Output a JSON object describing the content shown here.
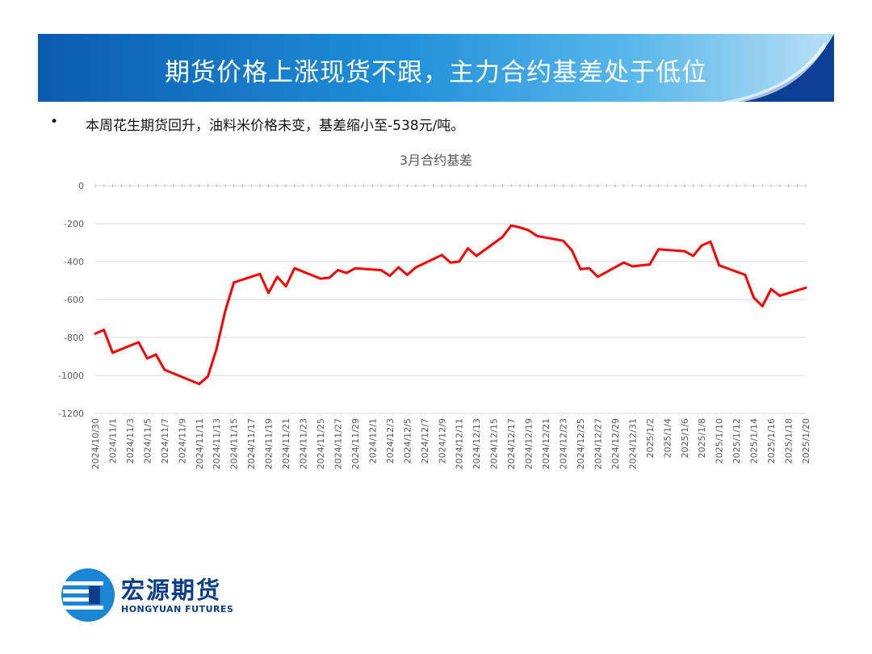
{
  "header": {
    "title": "期货价格上涨现货不跟，主力合约基差处于低位"
  },
  "bullet": {
    "marker": "•",
    "text": "本周花生期货回升，油料米价格未变，基差缩小至-538元/吨。"
  },
  "logo": {
    "name_cn": "宏源期货",
    "name_en": "HONGYUAN FUTURES"
  },
  "colors": {
    "series": "#ff0000",
    "banner": "#1a7fd0",
    "logo": "#0b3e8a"
  },
  "chart_data": {
    "type": "line",
    "title": "3月合约基差",
    "xlabel": "",
    "ylabel": "",
    "ylim": [
      -1200,
      0
    ],
    "yticks": [
      0,
      -200,
      -400,
      -600,
      -800,
      -1000,
      -1200
    ],
    "grid": true,
    "legend": "none",
    "x_tick_labels": [
      "2024/10/30",
      "2024/11/1",
      "2024/11/3",
      "2024/11/5",
      "2024/11/7",
      "2024/11/9",
      "2024/11/11",
      "2024/11/13",
      "2024/11/15",
      "2024/11/17",
      "2024/11/19",
      "2024/11/21",
      "2024/11/23",
      "2024/11/25",
      "2024/11/27",
      "2024/11/29",
      "2024/12/1",
      "2024/12/3",
      "2024/12/5",
      "2024/12/7",
      "2024/12/9",
      "2024/12/11",
      "2024/12/13",
      "2024/12/15",
      "2024/12/17",
      "2024/12/19",
      "2024/12/21",
      "2024/12/23",
      "2024/12/25",
      "2024/12/27",
      "2024/12/29",
      "2024/12/31",
      "2025/1/2",
      "2025/1/4",
      "2025/1/6",
      "2025/1/8",
      "2025/1/10",
      "2025/1/12",
      "2025/1/14",
      "2025/1/16",
      "2025/1/18",
      "2025/1/20"
    ],
    "series": [
      {
        "x": [
          "2024/10/30",
          "2024/10/31",
          "2024/11/1",
          "2024/11/4",
          "2024/11/5",
          "2024/11/6",
          "2024/11/7",
          "2024/11/11",
          "2024/11/12",
          "2024/11/13",
          "2024/11/14",
          "2024/11/15",
          "2024/11/18",
          "2024/11/19",
          "2024/11/20",
          "2024/11/21",
          "2024/11/22",
          "2024/11/25",
          "2024/11/26",
          "2024/11/27",
          "2024/11/28",
          "2024/11/29",
          "2024/12/2",
          "2024/12/3",
          "2024/12/4",
          "2024/12/5",
          "2024/12/6",
          "2024/12/9",
          "2024/12/10",
          "2024/12/11",
          "2024/12/12",
          "2024/12/13",
          "2024/12/16",
          "2024/12/17",
          "2024/12/18",
          "2024/12/19",
          "2024/12/20",
          "2024/12/23",
          "2024/12/24",
          "2024/12/25",
          "2024/12/26",
          "2024/12/27",
          "2024/12/30",
          "2024/12/31",
          "2025/1/2",
          "2025/1/3",
          "2025/1/6",
          "2025/1/7",
          "2025/1/8",
          "2025/1/9",
          "2025/1/10",
          "2025/1/13",
          "2025/1/14",
          "2025/1/15",
          "2025/1/16",
          "2025/1/17",
          "2025/1/20"
        ],
        "values": [
          -780,
          -760,
          -880,
          -825,
          -910,
          -890,
          -970,
          -1045,
          -1005,
          -860,
          -660,
          -510,
          -465,
          -565,
          -480,
          -530,
          -435,
          -490,
          -485,
          -445,
          -460,
          -435,
          -445,
          -475,
          -430,
          -470,
          -430,
          -365,
          -405,
          -400,
          -330,
          -370,
          -270,
          -210,
          -220,
          -235,
          -265,
          -290,
          -340,
          -440,
          -435,
          -480,
          -405,
          -425,
          -415,
          -335,
          -345,
          -370,
          -315,
          -295,
          -420,
          -470,
          -590,
          -635,
          -545,
          -580,
          -538
        ]
      }
    ]
  }
}
